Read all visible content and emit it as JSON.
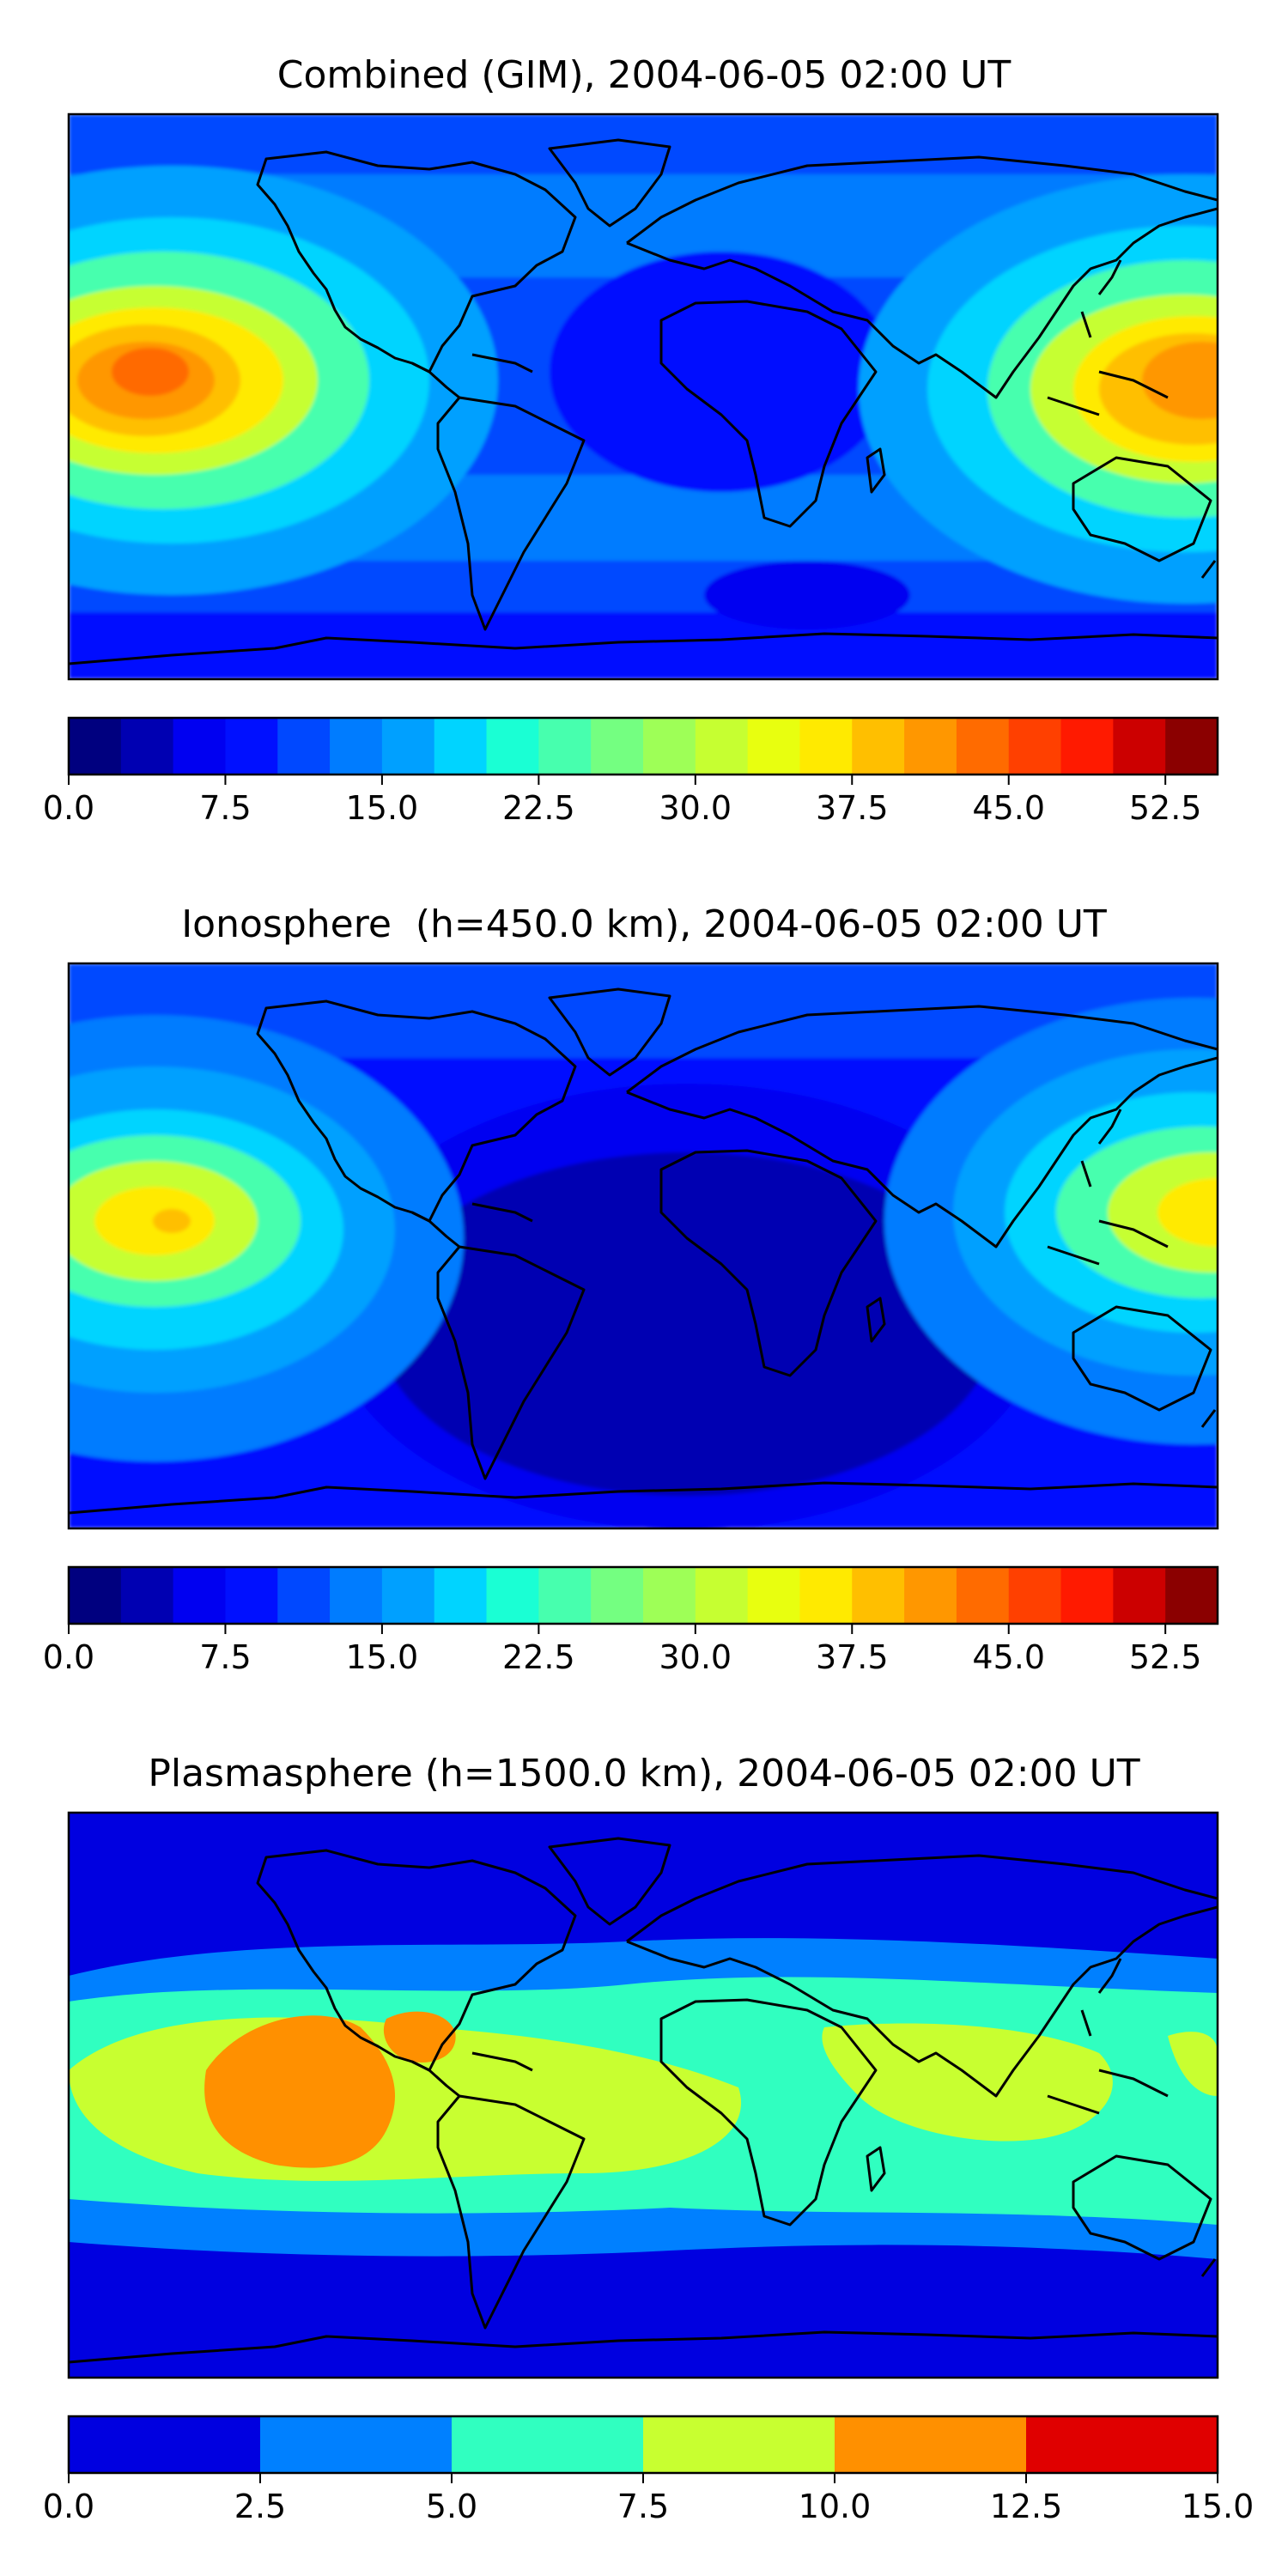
{
  "panels": [
    {
      "title": "Combined (GIM), 2004-06-05 02:00 UT",
      "colorbar": {
        "ticks": [
          "0.0",
          "7.5",
          "15.0",
          "22.5",
          "30.0",
          "37.5",
          "45.0",
          "52.5"
        ],
        "tick_values": [
          0,
          7.5,
          15,
          22.5,
          30,
          37.5,
          45,
          52.5
        ],
        "vmin": 0,
        "vmax": 55,
        "step": 2.5,
        "colors": [
          "#00007f",
          "#0000b2",
          "#0000f1",
          "#0010ff",
          "#0048ff",
          "#007cff",
          "#00a0ff",
          "#00d4ff",
          "#1affd4",
          "#47ffae",
          "#74ff81",
          "#9eff57",
          "#c6ff31",
          "#e8ff0f",
          "#ffea00",
          "#ffbf00",
          "#ff9700",
          "#ff6b00",
          "#ff4000",
          "#ff1a00",
          "#cc0000",
          "#8b0000"
        ]
      }
    },
    {
      "title": "Ionosphere  (h=450.0 km), 2004-06-05 02:00 UT",
      "colorbar": {
        "ticks": [
          "0.0",
          "7.5",
          "15.0",
          "22.5",
          "30.0",
          "37.5",
          "45.0",
          "52.5"
        ],
        "tick_values": [
          0,
          7.5,
          15,
          22.5,
          30,
          37.5,
          45,
          52.5
        ],
        "vmin": 0,
        "vmax": 55,
        "step": 2.5,
        "colors": [
          "#00007f",
          "#0000b2",
          "#0000f1",
          "#0010ff",
          "#0048ff",
          "#007cff",
          "#00a0ff",
          "#00d4ff",
          "#1affd4",
          "#47ffae",
          "#74ff81",
          "#9eff57",
          "#c6ff31",
          "#e8ff0f",
          "#ffea00",
          "#ffbf00",
          "#ff9700",
          "#ff6b00",
          "#ff4000",
          "#ff1a00",
          "#cc0000",
          "#8b0000"
        ]
      }
    },
    {
      "title": "Plasmasphere (h=1500.0 km), 2004-06-05 02:00 UT",
      "colorbar": {
        "ticks": [
          "0.0",
          "2.5",
          "5.0",
          "7.5",
          "10.0",
          "12.5",
          "15.0"
        ],
        "tick_values": [
          0,
          2.5,
          5,
          7.5,
          10,
          12.5,
          15
        ],
        "vmin": 0,
        "vmax": 15,
        "step": 2.5,
        "colors": [
          "#0000e0",
          "#0080ff",
          "#30ffc0",
          "#c8ff30",
          "#ff9000",
          "#e00000"
        ]
      }
    }
  ]
}
